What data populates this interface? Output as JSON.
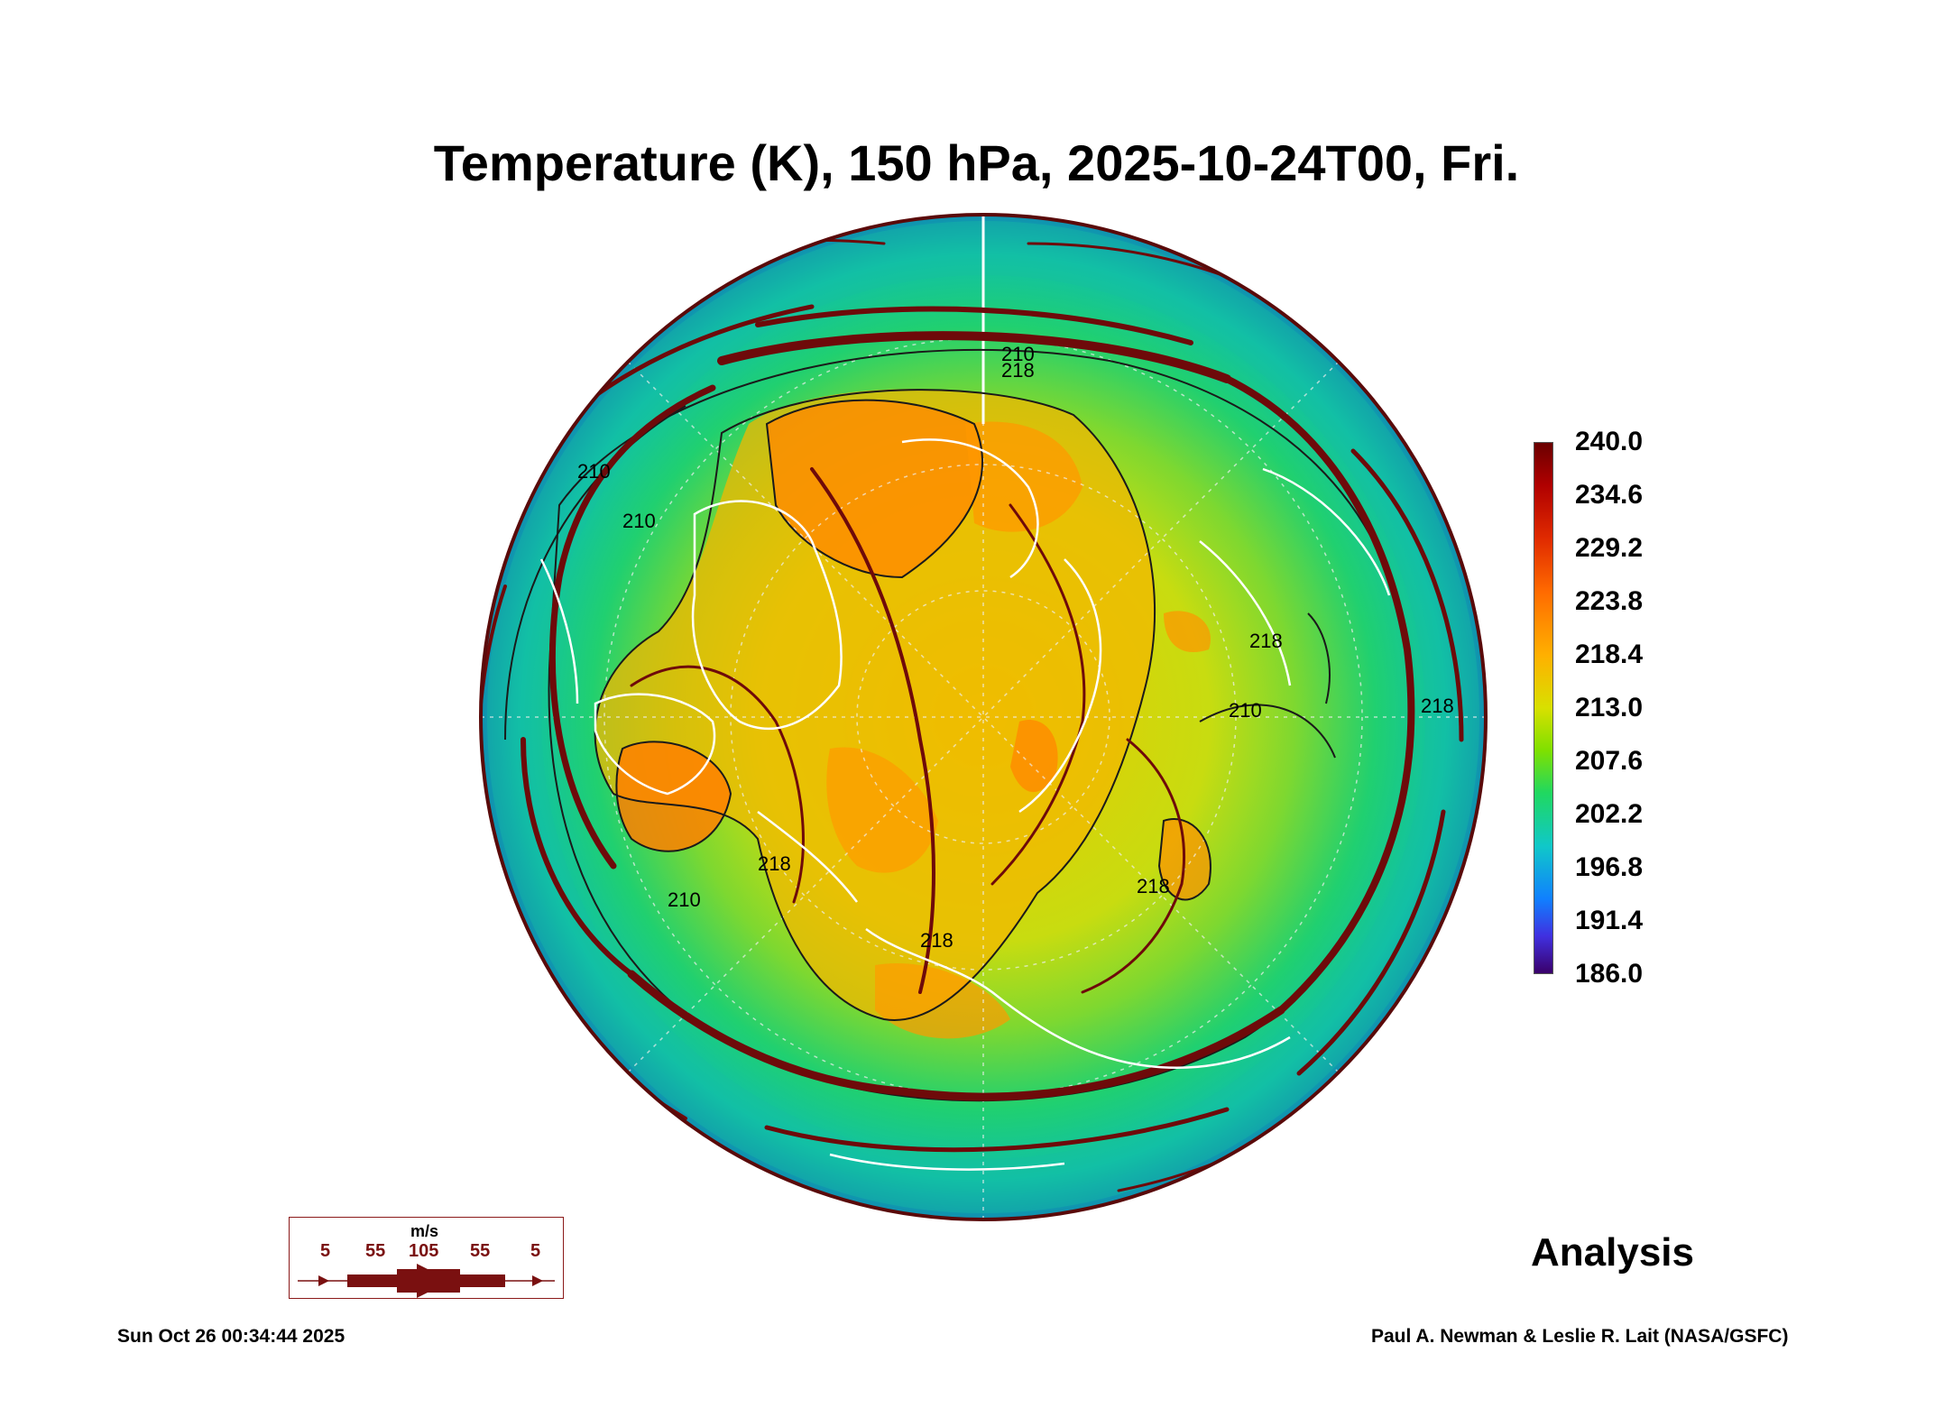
{
  "title": "Temperature (K), 150 hPa, 2025-10-24T00, Fri.",
  "colorbar": {
    "labels": [
      "240.0",
      "234.6",
      "229.2",
      "223.8",
      "218.4",
      "213.0",
      "207.6",
      "202.2",
      "196.8",
      "191.4",
      "186.0"
    ]
  },
  "contour_labels": [
    "210",
    "218",
    "210",
    "210",
    "218",
    "210",
    "218",
    "218",
    "218",
    "210",
    "218"
  ],
  "legend": {
    "unit": "m/s",
    "speeds": [
      "5",
      "55",
      "105",
      "55",
      "5"
    ]
  },
  "analysis_label": "Analysis",
  "footer": {
    "timestamp": "Sun Oct 26 00:34:44 2025",
    "credit": "Paul A. Newman & Leslie R. Lait (NASA/GSFC)"
  }
}
